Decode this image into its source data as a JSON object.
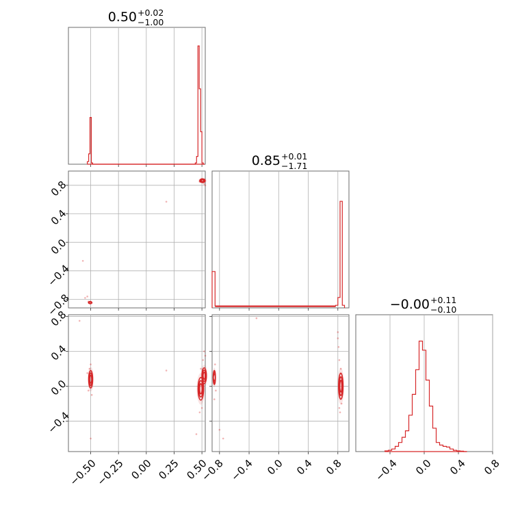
{
  "color": "#d62728",
  "chart_data": {
    "type": "corner",
    "panels": [
      {
        "id": "hist-p0",
        "type": "histogram",
        "row": 0,
        "col": 0,
        "title": {
          "median": "0.50",
          "plus": "+0.02",
          "minus": "−1.00"
        },
        "xlim": [
          -0.7,
          0.53
        ],
        "xgrid": [
          -0.5,
          -0.25,
          0.0,
          0.25,
          0.5
        ],
        "bin_edges": [
          -0.53,
          -0.518,
          -0.506,
          -0.494,
          -0.482,
          0.44,
          0.452,
          0.464,
          0.476,
          0.488,
          0.5,
          0.512,
          0.524
        ],
        "bin_heights": [
          0.02,
          0.08,
          0.36,
          0.01,
          0.0,
          0.01,
          0.06,
          0.91,
          0.58,
          0.25,
          0.01,
          0.0
        ]
      },
      {
        "id": "hist-p1",
        "type": "histogram",
        "row": 1,
        "col": 1,
        "title": {
          "median": "0.85",
          "plus": "+0.01",
          "minus": "−1.71"
        },
        "xlim": [
          -0.9,
          0.95
        ],
        "xgrid": [
          -0.8,
          -0.4,
          0.0,
          0.4,
          0.8
        ],
        "bin_edges": [
          -0.9,
          -0.86,
          0.77,
          0.8,
          0.83,
          0.86,
          0.89
        ],
        "bin_heights": [
          0.28,
          0.015,
          0.02,
          0.08,
          0.82,
          0.02
        ],
        "floor": 0.01
      },
      {
        "id": "hist-p2",
        "type": "histogram",
        "row": 2,
        "col": 2,
        "title": {
          "median": "−0.00",
          "plus": "+0.11",
          "minus": "−0.10"
        },
        "xlim": [
          -0.8,
          0.8
        ],
        "xgrid": [
          -0.4,
          0.0,
          0.4,
          0.8
        ],
        "bin_edges": [
          -0.46,
          -0.42,
          -0.38,
          -0.34,
          -0.3,
          -0.26,
          -0.22,
          -0.18,
          -0.14,
          -0.1,
          -0.06,
          -0.02,
          0.02,
          0.06,
          0.1,
          0.14,
          0.18,
          0.22,
          0.26,
          0.3,
          0.34,
          0.38,
          0.42,
          0.46,
          0.5
        ],
        "bin_heights": [
          0.005,
          0.01,
          0.02,
          0.04,
          0.07,
          0.11,
          0.16,
          0.28,
          0.44,
          0.63,
          0.85,
          0.78,
          0.55,
          0.35,
          0.18,
          0.07,
          0.05,
          0.04,
          0.035,
          0.02,
          0.01,
          0.005,
          0.003,
          0.0
        ]
      },
      {
        "id": "scatter-p0-p1",
        "type": "scatter-contour",
        "row": 1,
        "col": 0,
        "xlim": [
          -0.7,
          0.53
        ],
        "ylim": [
          -0.92,
          1.0
        ],
        "xgrid": [
          -0.5,
          -0.25,
          0.0,
          0.25,
          0.5
        ],
        "ygrid": [
          -0.8,
          -0.4,
          0.0,
          0.4,
          0.8
        ],
        "clusters": [
          {
            "cx": 0.505,
            "cy": 0.865,
            "rx": 0.025,
            "ry": 0.025
          },
          {
            "cx": -0.505,
            "cy": -0.845,
            "rx": 0.015,
            "ry": 0.015
          }
        ],
        "points": [
          [
            0.49,
            0.87
          ],
          [
            0.51,
            0.84
          ],
          [
            0.52,
            0.82
          ],
          [
            0.5,
            0.89
          ],
          [
            0.48,
            0.85
          ],
          [
            0.53,
            0.8
          ],
          [
            0.51,
            0.86
          ],
          [
            -0.51,
            -0.84
          ],
          [
            -0.5,
            -0.86
          ],
          [
            -0.52,
            -0.83
          ],
          [
            -0.49,
            -0.85
          ],
          [
            -0.55,
            -0.78
          ],
          [
            -0.53,
            -0.76
          ],
          [
            -0.57,
            -0.26
          ],
          [
            0.18,
            0.57
          ]
        ]
      },
      {
        "id": "scatter-p0-p2",
        "type": "scatter-contour",
        "row": 2,
        "col": 0,
        "xlim": [
          -0.7,
          0.53
        ],
        "ylim": [
          -0.75,
          0.82
        ],
        "xgrid": [
          -0.5,
          -0.25,
          0.0,
          0.25,
          0.5
        ],
        "ygrid": [
          -0.4,
          0.0,
          0.4,
          0.8
        ],
        "clusters": [
          {
            "cx": -0.5,
            "cy": 0.08,
            "rx": 0.018,
            "ry": 0.1
          },
          {
            "cx": 0.49,
            "cy": -0.03,
            "rx": 0.025,
            "ry": 0.13
          },
          {
            "cx": 0.52,
            "cy": 0.12,
            "rx": 0.02,
            "ry": 0.09
          }
        ],
        "points": [
          [
            -0.51,
            0.2
          ],
          [
            -0.49,
            -0.1
          ],
          [
            -0.52,
            -0.05
          ],
          [
            -0.5,
            0.25
          ],
          [
            -0.53,
            0.15
          ],
          [
            0.48,
            -0.3
          ],
          [
            0.5,
            -0.25
          ],
          [
            0.51,
            0.3
          ],
          [
            0.52,
            0.4
          ],
          [
            0.53,
            0.35
          ],
          [
            0.49,
            0.2
          ],
          [
            0.45,
            -0.55
          ],
          [
            0.18,
            0.18
          ],
          [
            -0.5,
            -0.6
          ],
          [
            -0.6,
            0.75
          ]
        ]
      },
      {
        "id": "scatter-p1-p2",
        "type": "scatter-contour",
        "row": 2,
        "col": 1,
        "xlim": [
          -0.9,
          0.95
        ],
        "ylim": [
          -0.75,
          0.82
        ],
        "xgrid": [
          -0.8,
          -0.4,
          0.0,
          0.4,
          0.8
        ],
        "ygrid": [
          -0.4,
          0.0,
          0.4,
          0.8
        ],
        "clusters": [
          {
            "cx": 0.84,
            "cy": 0.0,
            "rx": 0.03,
            "ry": 0.15
          },
          {
            "cx": -0.87,
            "cy": 0.1,
            "rx": 0.015,
            "ry": 0.08
          }
        ],
        "points": [
          [
            0.82,
            0.3
          ],
          [
            0.83,
            -0.3
          ],
          [
            0.81,
            0.45
          ],
          [
            0.8,
            0.62
          ],
          [
            0.85,
            -0.2
          ],
          [
            0.84,
            0.2
          ],
          [
            0.82,
            -0.25
          ],
          [
            -0.86,
            0.25
          ],
          [
            -0.87,
            -0.15
          ],
          [
            -0.85,
            -0.05
          ],
          [
            -0.8,
            -0.5
          ],
          [
            -0.75,
            -0.6
          ],
          [
            -0.3,
            0.78
          ],
          [
            0.8,
            0.55
          ]
        ]
      }
    ],
    "ticks": {
      "p0": [
        "−0.50",
        "−0.25",
        "0.00",
        "0.25",
        "0.50"
      ],
      "p1": [
        "−0.8",
        "−0.4",
        "0.0",
        "0.4",
        "0.8"
      ],
      "p2": [
        "−0.4",
        "0.0",
        "0.4",
        "0.8"
      ]
    },
    "grid": true
  }
}
